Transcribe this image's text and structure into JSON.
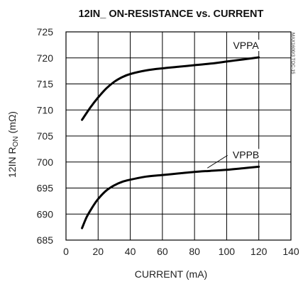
{
  "chart_data": {
    "type": "line",
    "title": "12IN_  ON-RESISTANCE vs. CURRENT",
    "xlabel": "CURRENT (mA)",
    "ylabel_parts": {
      "main": "12IN R",
      "sub": "ON",
      "unit": " (mΩ)"
    },
    "xlim": [
      0,
      140
    ],
    "ylim": [
      685,
      725
    ],
    "xticks": [
      "0",
      "20",
      "40",
      "60",
      "80",
      "100",
      "120",
      "140"
    ],
    "yticks": [
      "685",
      "690",
      "695",
      "700",
      "705",
      "710",
      "715",
      "720",
      "725"
    ],
    "grid": true,
    "side_note": "MAX1600/3 TOC-15",
    "series": [
      {
        "name": "VPPA",
        "x": [
          10,
          15,
          20,
          25,
          30,
          35,
          40,
          50,
          60,
          70,
          80,
          90,
          100,
          110,
          120
        ],
        "y": [
          708.1,
          710.4,
          712.4,
          714.1,
          715.4,
          716.3,
          716.9,
          717.6,
          718.0,
          718.3,
          718.6,
          718.9,
          719.3,
          719.7,
          720.1
        ]
      },
      {
        "name": "VPPB",
        "x": [
          10,
          13,
          17,
          20,
          25,
          30,
          35,
          40,
          50,
          60,
          70,
          80,
          90,
          100,
          110,
          120
        ],
        "y": [
          687.3,
          689.5,
          691.6,
          692.9,
          694.5,
          695.5,
          696.2,
          696.6,
          697.2,
          697.5,
          697.8,
          698.1,
          698.3,
          698.5,
          698.8,
          699.1
        ]
      }
    ]
  }
}
